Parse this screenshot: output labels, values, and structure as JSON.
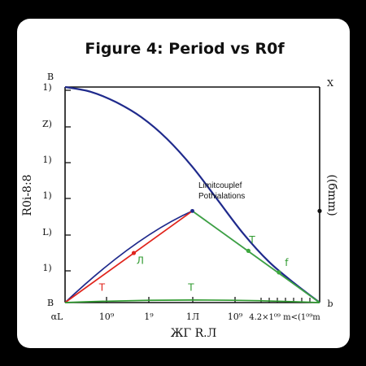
{
  "chart_data": {
    "type": "line",
    "title": "Figure 4: Period vs R0f",
    "xlabel": "ЖΓ R.Л",
    "ylabel": "R0i-8:8",
    "ylabel_right": "((бmm)",
    "x_ticks": [
      "αL",
      "10⁹",
      "1⁹",
      "1Л",
      "10⁹",
      "4.2×1⁰⁹ m<(1⁰⁹m"
    ],
    "y_ticks_left": [
      "B",
      "1)",
      "Z)",
      "1)",
      "1)",
      "L)",
      "1)",
      "B"
    ],
    "corner_right_top": "X",
    "corner_right_bottom": "b",
    "annotation": [
      "Limitcouplef",
      "Pothialations"
    ],
    "xlim": [
      0,
      10
    ],
    "ylim": [
      0,
      10
    ],
    "grid": false,
    "series": [
      {
        "key": "blue_curve",
        "color": "#1f2a8c",
        "x": [
          0,
          1,
          2,
          3,
          4,
          5,
          6,
          7,
          8,
          9,
          10
        ],
        "y": [
          10,
          9.78,
          9.3,
          8.6,
          7.6,
          6.3,
          4.75,
          3.2,
          1.9,
          0.9,
          0
        ]
      },
      {
        "key": "blue_triangle",
        "color": "#1f2a8c",
        "x": [
          0,
          5,
          10
        ],
        "y": [
          0,
          4.25,
          0
        ]
      },
      {
        "key": "red_line",
        "color": "#e0241c",
        "x": [
          0,
          5
        ],
        "y": [
          0,
          4.25
        ],
        "markers": [
          {
            "x": 2.7,
            "y": 2.3
          }
        ]
      },
      {
        "key": "green_line",
        "color": "#3ea83e",
        "x": [
          5,
          10
        ],
        "y": [
          4.25,
          0
        ],
        "markers": [
          {
            "x": 7.2,
            "y": 2.4
          },
          {
            "x": 8.4,
            "y": 1.4
          }
        ]
      },
      {
        "key": "green_baseline",
        "color": "#2f9a2f",
        "x": [
          0,
          5,
          10
        ],
        "y": [
          0,
          0.12,
          0
        ]
      }
    ],
    "series_labels": [
      {
        "text": "T",
        "color": "#e0241c",
        "x": 1.45,
        "y": 0.55
      },
      {
        "text": "Л",
        "color": "#2f9a2f",
        "x": 2.95,
        "y": 1.8
      },
      {
        "text": "T",
        "color": "#2f9a2f",
        "x": 4.95,
        "y": 0.55
      },
      {
        "text": "T",
        "color": "#2f9a2f",
        "x": 7.35,
        "y": 2.75
      },
      {
        "text": "f",
        "color": "#2f9a2f",
        "x": 8.7,
        "y": 1.7
      }
    ],
    "right_axis_marker": {
      "x": 10,
      "y": 4.25
    }
  }
}
